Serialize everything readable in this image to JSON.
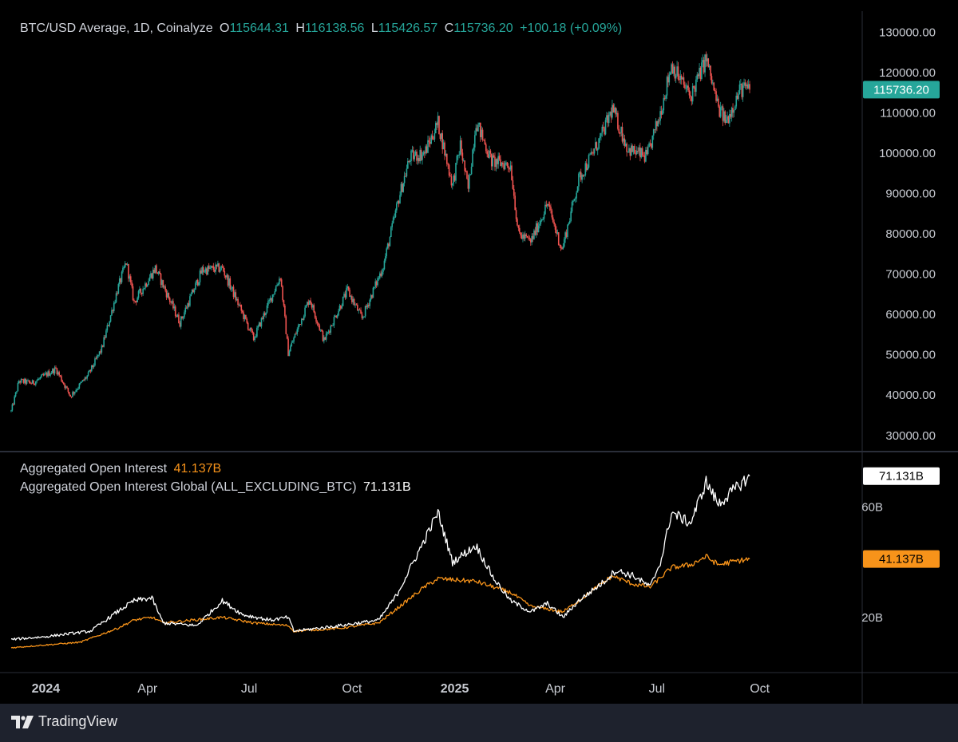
{
  "header": {
    "title": "BTC/USD Average, 1D, Coinalyze",
    "o_label": "O",
    "o_value": "115644.31",
    "h_label": "H",
    "h_value": "116138.56",
    "l_label": "L",
    "l_value": "115426.57",
    "c_label": "C",
    "c_value": "115736.20",
    "change": "+100.18 (+0.09%)"
  },
  "oi_legend": {
    "series1_name": "Aggregated Open Interest",
    "series1_value": "41.137B",
    "series2_name": "Aggregated Open Interest Global (ALL_EXCLUDING_BTC)",
    "series2_value": "71.131B"
  },
  "brand": {
    "name": "TradingView"
  },
  "colors": {
    "up": "#26a69a",
    "down": "#ef5350",
    "oi": "#f7931a",
    "oi_global": "#ffffff",
    "grid": "#2a2e39",
    "text": "#d1d4dc"
  },
  "chart_data": [
    {
      "type": "candlestick",
      "title": "BTC/USD Average, 1D, Coinalyze",
      "ylim": [
        26000,
        136000
      ],
      "yticks": [
        "130000.00",
        "120000.00",
        "110000.00",
        "100000.00",
        "90000.00",
        "80000.00",
        "70000.00",
        "60000.00",
        "50000.00",
        "40000.00",
        "30000.00"
      ],
      "last_price_label": "115736.20",
      "last_price": 115736.2,
      "x_range": [
        "2023-12-01",
        "2025-12-31"
      ],
      "xticks": [
        {
          "date": "2024-01-01",
          "label": "2024",
          "bold": true
        },
        {
          "date": "2024-04-01",
          "label": "Apr",
          "bold": false
        },
        {
          "date": "2024-07-01",
          "label": "Jul",
          "bold": false
        },
        {
          "date": "2024-10-01",
          "label": "Oct",
          "bold": false
        },
        {
          "date": "2025-01-01",
          "label": "2025",
          "bold": true
        },
        {
          "date": "2025-04-01",
          "label": "Apr",
          "bold": false
        },
        {
          "date": "2025-07-01",
          "label": "Jul",
          "bold": false
        },
        {
          "date": "2025-10-01",
          "label": "Oct",
          "bold": false
        }
      ],
      "close_path": [
        [
          "2023-12-01",
          36000
        ],
        [
          "2023-12-08",
          43500
        ],
        [
          "2023-12-20",
          43000
        ],
        [
          "2024-01-10",
          46500
        ],
        [
          "2024-01-23",
          39800
        ],
        [
          "2024-02-08",
          45000
        ],
        [
          "2024-02-20",
          51500
        ],
        [
          "2024-03-05",
          66000
        ],
        [
          "2024-03-13",
          73000
        ],
        [
          "2024-03-20",
          63000
        ],
        [
          "2024-04-08",
          71500
        ],
        [
          "2024-04-30",
          58000
        ],
        [
          "2024-05-20",
          71000
        ],
        [
          "2024-06-07",
          71500
        ],
        [
          "2024-07-05",
          54000
        ],
        [
          "2024-07-29",
          69500
        ],
        [
          "2024-08-05",
          50500
        ],
        [
          "2024-08-24",
          64000
        ],
        [
          "2024-09-06",
          53500
        ],
        [
          "2024-09-27",
          66000
        ],
        [
          "2024-10-10",
          59000
        ],
        [
          "2024-10-29",
          72000
        ],
        [
          "2024-11-13",
          90000
        ],
        [
          "2024-11-22",
          99000
        ],
        [
          "2024-12-05",
          100000
        ],
        [
          "2024-12-17",
          107500
        ],
        [
          "2024-12-30",
          92000
        ],
        [
          "2025-01-06",
          102000
        ],
        [
          "2025-01-13",
          91000
        ],
        [
          "2025-01-20",
          108000
        ],
        [
          "2025-02-03",
          98000
        ],
        [
          "2025-02-20",
          97000
        ],
        [
          "2025-02-27",
          80000
        ],
        [
          "2025-03-10",
          78000
        ],
        [
          "2025-03-25",
          87500
        ],
        [
          "2025-04-07",
          76000
        ],
        [
          "2025-04-22",
          93500
        ],
        [
          "2025-05-12",
          104000
        ],
        [
          "2025-05-22",
          111000
        ],
        [
          "2025-06-05",
          101000
        ],
        [
          "2025-06-22",
          99000
        ],
        [
          "2025-07-03",
          109000
        ],
        [
          "2025-07-14",
          122000
        ],
        [
          "2025-07-31",
          114000
        ],
        [
          "2025-08-14",
          123500
        ],
        [
          "2025-08-25",
          111000
        ],
        [
          "2025-09-01",
          108000
        ],
        [
          "2025-09-14",
          116000
        ],
        [
          "2025-09-22",
          115736
        ]
      ]
    },
    {
      "type": "line",
      "title": "Aggregated Open Interest",
      "ylim": [
        0,
        80
      ],
      "yticks": [
        "60B",
        "20B"
      ],
      "yticks_values": [
        60,
        20
      ],
      "series": [
        {
          "name": "Aggregated Open Interest Global (ALL_EXCLUDING_BTC)",
          "last_label": "71.131B",
          "points": [
            [
              "2023-12-01",
              12
            ],
            [
              "2024-01-01",
              13
            ],
            [
              "2024-01-20",
              14
            ],
            [
              "2024-02-10",
              15
            ],
            [
              "2024-03-05",
              22
            ],
            [
              "2024-03-20",
              26
            ],
            [
              "2024-04-05",
              27
            ],
            [
              "2024-04-15",
              18
            ],
            [
              "2024-05-15",
              17
            ],
            [
              "2024-06-07",
              26
            ],
            [
              "2024-06-25",
              21
            ],
            [
              "2024-07-20",
              19
            ],
            [
              "2024-08-05",
              20
            ],
            [
              "2024-08-10",
              15
            ],
            [
              "2024-09-20",
              17
            ],
            [
              "2024-10-25",
              19
            ],
            [
              "2024-11-10",
              28
            ],
            [
              "2024-12-05",
              48
            ],
            [
              "2024-12-17",
              58
            ],
            [
              "2024-12-30",
              40
            ],
            [
              "2025-01-20",
              46
            ],
            [
              "2025-02-05",
              34
            ],
            [
              "2025-02-20",
              26
            ],
            [
              "2025-03-10",
              22
            ],
            [
              "2025-03-25",
              25
            ],
            [
              "2025-04-08",
              20
            ],
            [
              "2025-04-22",
              26
            ],
            [
              "2025-05-15",
              33
            ],
            [
              "2025-05-25",
              37
            ],
            [
              "2025-06-10",
              35
            ],
            [
              "2025-06-25",
              31
            ],
            [
              "2025-07-05",
              41
            ],
            [
              "2025-07-14",
              58
            ],
            [
              "2025-07-31",
              54
            ],
            [
              "2025-08-14",
              69
            ],
            [
              "2025-08-25",
              61
            ],
            [
              "2025-09-05",
              65
            ],
            [
              "2025-09-22",
              71.131
            ]
          ]
        },
        {
          "name": "Aggregated Open Interest",
          "last_label": "41.137B",
          "points": [
            [
              "2023-12-01",
              9
            ],
            [
              "2024-01-01",
              10
            ],
            [
              "2024-02-01",
              11
            ],
            [
              "2024-03-05",
              16
            ],
            [
              "2024-03-20",
              19
            ],
            [
              "2024-04-05",
              20
            ],
            [
              "2024-04-15",
              18
            ],
            [
              "2024-06-07",
              20
            ],
            [
              "2024-07-05",
              18
            ],
            [
              "2024-08-05",
              17
            ],
            [
              "2024-08-10",
              15
            ],
            [
              "2024-09-20",
              16
            ],
            [
              "2024-10-25",
              18
            ],
            [
              "2024-11-13",
              24
            ],
            [
              "2024-12-05",
              31
            ],
            [
              "2024-12-17",
              34
            ],
            [
              "2025-01-20",
              33
            ],
            [
              "2025-02-20",
              29
            ],
            [
              "2025-03-10",
              24
            ],
            [
              "2025-04-08",
              22
            ],
            [
              "2025-04-22",
              26
            ],
            [
              "2025-05-22",
              35
            ],
            [
              "2025-06-10",
              32
            ],
            [
              "2025-06-25",
              31
            ],
            [
              "2025-07-14",
              38
            ],
            [
              "2025-07-31",
              39
            ],
            [
              "2025-08-14",
              42
            ],
            [
              "2025-08-25",
              39
            ],
            [
              "2025-09-05",
              40
            ],
            [
              "2025-09-22",
              41.137
            ]
          ]
        }
      ]
    }
  ]
}
